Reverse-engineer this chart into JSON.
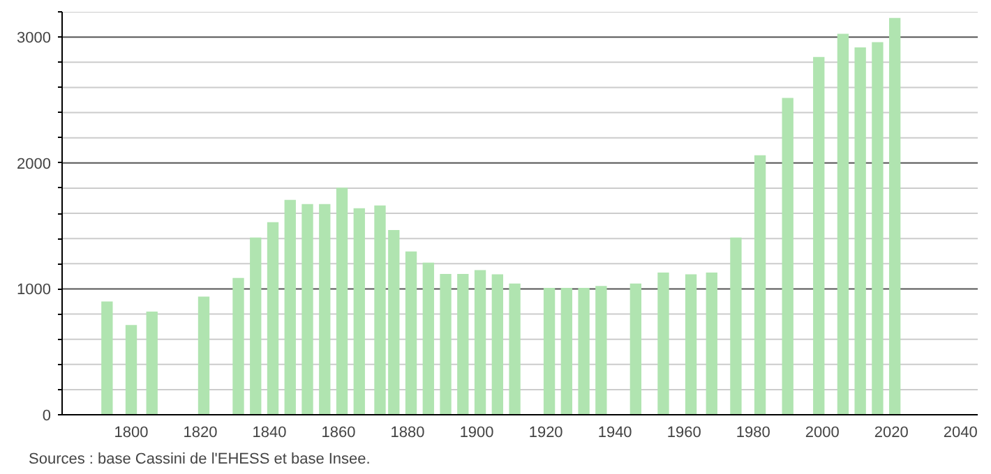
{
  "chart_data": {
    "type": "bar",
    "x": [
      1793,
      1800,
      1806,
      1821,
      1831,
      1836,
      1841,
      1846,
      1851,
      1856,
      1861,
      1866,
      1872,
      1876,
      1881,
      1886,
      1891,
      1896,
      1901,
      1906,
      1911,
      1921,
      1926,
      1931,
      1936,
      1946,
      1954,
      1962,
      1968,
      1975,
      1982,
      1990,
      1999,
      2006,
      2011,
      2016,
      2021
    ],
    "values": [
      900,
      713,
      820,
      938,
      1086,
      1407,
      1529,
      1707,
      1673,
      1673,
      1803,
      1640,
      1662,
      1467,
      1297,
      1208,
      1119,
      1119,
      1149,
      1116,
      1042,
      1008,
      1008,
      1008,
      1023,
      1042,
      1130,
      1116,
      1130,
      1407,
      2061,
      2516,
      2841,
      3025,
      2918,
      2959,
      3151
    ],
    "color": "#b0e4b0",
    "xlim": [
      1780,
      2045
    ],
    "xticks": [
      1800,
      1820,
      1840,
      1860,
      1880,
      1900,
      1920,
      1940,
      1960,
      1980,
      2000,
      2020,
      2040
    ],
    "ylim": [
      0,
      3200
    ],
    "yticks": [
      0,
      {
        "value": 200,
        "label": null
      },
      {
        "value": 400,
        "label": null
      },
      {
        "value": 600,
        "label": null
      },
      {
        "value": 800,
        "label": null
      },
      1000,
      {
        "value": 1200,
        "label": null
      },
      {
        "value": 1400,
        "label": null
      },
      {
        "value": 1600,
        "label": null
      },
      {
        "value": 1800,
        "label": null
      },
      2000,
      {
        "value": 2200,
        "label": null
      },
      {
        "value": 2400,
        "label": null
      },
      {
        "value": 2600,
        "label": null
      },
      {
        "value": 2800,
        "label": null
      },
      3000,
      {
        "value": 3200,
        "label": null
      }
    ],
    "grid": "y",
    "annotations": [
      "Sources : base Cassini de l'EHESS et base Insee."
    ]
  }
}
